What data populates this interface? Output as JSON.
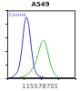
{
  "chart_data": {
    "type": "line",
    "title": "A549",
    "footer": "115578701",
    "log": "x",
    "xlim": [
      1,
      10000
    ],
    "xticks": [
      1,
      10,
      100,
      1000,
      10000
    ],
    "ylim": [
      0,
      100
    ],
    "yticks": [
      0,
      20,
      40,
      60,
      80,
      100
    ],
    "tick_labels": false,
    "grid": false,
    "series": [
      {
        "name": "Control",
        "color": "#3a3ad0",
        "x": [
          1,
          2,
          4,
          6,
          8,
          10,
          13,
          16,
          20,
          25,
          32,
          40,
          60,
          100,
          300,
          1000,
          10000
        ],
        "values": [
          0,
          2,
          10,
          30,
          55,
          78,
          90,
          86,
          70,
          48,
          28,
          14,
          5,
          2,
          0,
          0,
          0
        ]
      },
      {
        "color": "#3cc83c",
        "x": [
          1,
          5,
          10,
          20,
          40,
          60,
          80,
          100,
          130,
          160,
          200,
          260,
          350,
          500,
          800,
          1500,
          10000
        ],
        "values": [
          0,
          1,
          3,
          8,
          20,
          33,
          44,
          52,
          56,
          54,
          46,
          34,
          20,
          10,
          3,
          0,
          0
        ]
      }
    ]
  }
}
